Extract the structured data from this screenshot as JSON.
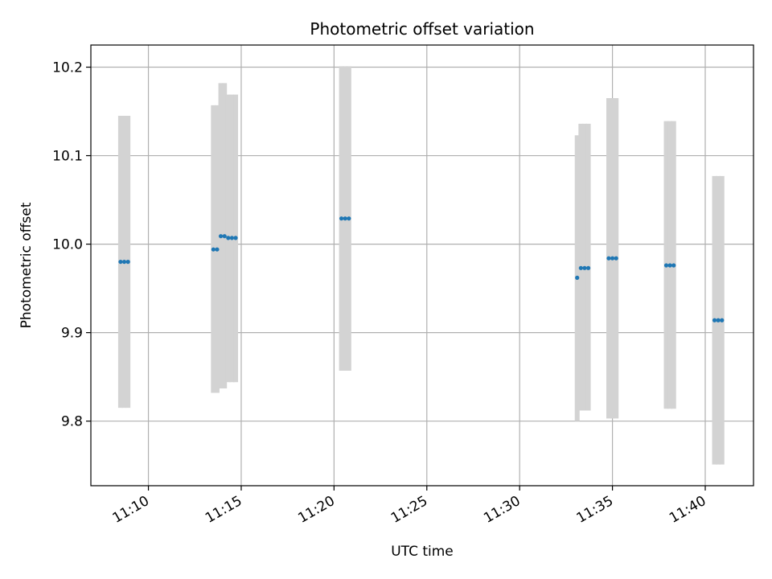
{
  "chart_data": {
    "type": "scatter",
    "title": "Photometric offset variation",
    "xlabel": "UTC time",
    "ylabel": "Photometric offset",
    "x_ticks": [
      "11:10",
      "11:15",
      "11:20",
      "11:25",
      "11:30",
      "11:35",
      "11:40"
    ],
    "y_ticks": [
      "9.8",
      "9.9",
      "10.0",
      "10.1",
      "10.2"
    ],
    "xlim": [
      "11:06:54",
      "11:42:36"
    ],
    "ylim": [
      9.727,
      10.225
    ],
    "grid": true,
    "point_color": "#1f77b4",
    "errorbar_color": "#d3d3d3",
    "points": [
      {
        "time": "11:08:30",
        "value": 9.98,
        "low": 9.815,
        "high": 10.145
      },
      {
        "time": "11:08:42",
        "value": 9.98,
        "low": 9.815,
        "high": 10.145
      },
      {
        "time": "11:08:54",
        "value": 9.98,
        "low": 9.815,
        "high": 10.145
      },
      {
        "time": "11:13:30",
        "value": 9.994,
        "low": 9.832,
        "high": 10.157
      },
      {
        "time": "11:13:42",
        "value": 9.994,
        "low": 9.832,
        "high": 10.157
      },
      {
        "time": "11:13:54",
        "value": 10.009,
        "low": 9.837,
        "high": 10.182
      },
      {
        "time": "11:14:06",
        "value": 10.009,
        "low": 9.837,
        "high": 10.182
      },
      {
        "time": "11:14:18",
        "value": 10.007,
        "low": 9.844,
        "high": 10.169
      },
      {
        "time": "11:14:30",
        "value": 10.007,
        "low": 9.844,
        "high": 10.169
      },
      {
        "time": "11:14:42",
        "value": 10.007,
        "low": 9.844,
        "high": 10.169
      },
      {
        "time": "11:20:24",
        "value": 10.029,
        "low": 9.857,
        "high": 10.201
      },
      {
        "time": "11:20:36",
        "value": 10.029,
        "low": 9.857,
        "high": 10.201
      },
      {
        "time": "11:20:48",
        "value": 10.029,
        "low": 9.857,
        "high": 10.201
      },
      {
        "time": "11:33:06",
        "value": 9.962,
        "low": 9.8,
        "high": 10.123
      },
      {
        "time": "11:33:18",
        "value": 9.973,
        "low": 9.812,
        "high": 10.136
      },
      {
        "time": "11:33:30",
        "value": 9.973,
        "low": 9.812,
        "high": 10.136
      },
      {
        "time": "11:33:42",
        "value": 9.973,
        "low": 9.812,
        "high": 10.136
      },
      {
        "time": "11:34:48",
        "value": 9.984,
        "low": 9.803,
        "high": 10.165
      },
      {
        "time": "11:35:00",
        "value": 9.984,
        "low": 9.803,
        "high": 10.165
      },
      {
        "time": "11:35:12",
        "value": 9.984,
        "low": 9.803,
        "high": 10.165
      },
      {
        "time": "11:37:54",
        "value": 9.976,
        "low": 9.814,
        "high": 10.139
      },
      {
        "time": "11:38:06",
        "value": 9.976,
        "low": 9.814,
        "high": 10.139
      },
      {
        "time": "11:38:18",
        "value": 9.976,
        "low": 9.814,
        "high": 10.139
      },
      {
        "time": "11:40:30",
        "value": 9.914,
        "low": 9.751,
        "high": 10.077
      },
      {
        "time": "11:40:42",
        "value": 9.914,
        "low": 9.751,
        "high": 10.077
      },
      {
        "time": "11:40:54",
        "value": 9.914,
        "low": 9.751,
        "high": 10.077
      }
    ]
  }
}
